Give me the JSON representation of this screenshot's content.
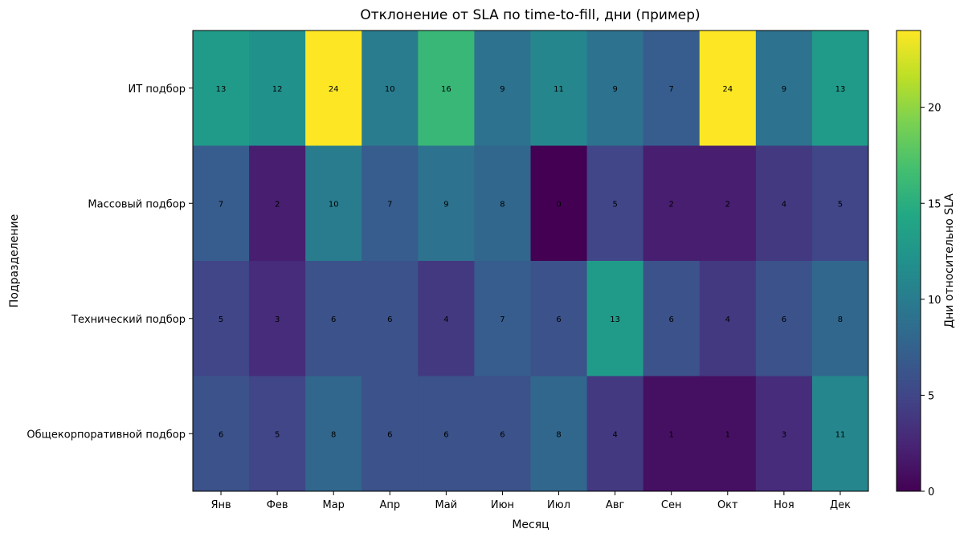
{
  "chart_data": {
    "type": "heatmap",
    "title": "Отклонение от SLA по time-to-fill, дни (пример)",
    "xlabel": "Месяц",
    "ylabel": "Подразделение",
    "colorbar_label": "Дни относительно SLA",
    "colormap": "viridis",
    "vmin": 0,
    "vmax": 24,
    "colorbar_ticks": [
      0,
      5,
      10,
      15,
      20
    ],
    "x_categories": [
      "Янв",
      "Фев",
      "Мар",
      "Апр",
      "Май",
      "Июн",
      "Июл",
      "Авг",
      "Сен",
      "Окт",
      "Ноя",
      "Дек"
    ],
    "y_categories": [
      "ИТ подбор",
      "Массовый подбор",
      "Технический подбор",
      "Общекорпоративной подбор"
    ],
    "values": [
      [
        13,
        12,
        24,
        10,
        16,
        9,
        11,
        9,
        7,
        24,
        9,
        13
      ],
      [
        7,
        2,
        10,
        7,
        9,
        8,
        0,
        5,
        2,
        2,
        4,
        5
      ],
      [
        5,
        3,
        6,
        6,
        4,
        7,
        6,
        13,
        6,
        4,
        6,
        8
      ],
      [
        6,
        5,
        8,
        6,
        6,
        6,
        8,
        4,
        1,
        1,
        3,
        11
      ]
    ]
  }
}
